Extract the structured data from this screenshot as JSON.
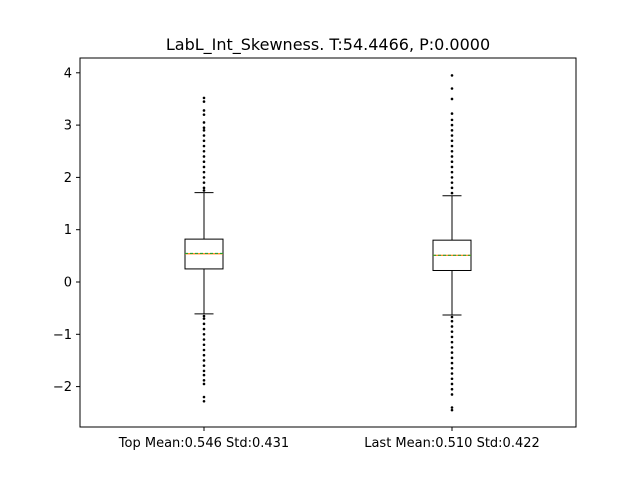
{
  "chart_data": {
    "type": "box",
    "title": "LabL_Int_Skewness. T:54.4466, P:0.0000",
    "xlabel": "",
    "ylabel": "",
    "ylim": [
      -2.8,
      4.25
    ],
    "yticks": [
      -2,
      -1,
      0,
      1,
      2,
      3,
      4
    ],
    "ytick_labels": [
      "−2",
      "−1",
      "0",
      "1",
      "2",
      "3",
      "4"
    ],
    "grid": false,
    "colors": {
      "box": "#000000",
      "median": "#ff7f0e",
      "mean": "#2ca02c",
      "flier": "#000000"
    },
    "boxes": [
      {
        "label": "Top Mean:0.546 Std:0.431",
        "q1": 0.25,
        "median": 0.54,
        "q3": 0.82,
        "mean": 0.546,
        "whisker_low": -0.61,
        "whisker_high": 1.71,
        "flier_high": [
          1.75,
          1.8,
          1.9,
          2.0,
          2.1,
          2.2,
          2.3,
          2.4,
          2.5,
          2.6,
          2.7,
          2.8,
          2.9,
          2.95,
          3.05,
          3.2,
          3.28,
          3.45,
          3.52
        ],
        "flier_low": [
          -0.65,
          -0.7,
          -0.8,
          -0.9,
          -1.0,
          -1.1,
          -1.2,
          -1.3,
          -1.4,
          -1.5,
          -1.6,
          -1.7,
          -1.78,
          -1.88,
          -1.95,
          -2.2,
          -2.28
        ]
      },
      {
        "label": "Last Mean:0.510 Std:0.422",
        "q1": 0.22,
        "median": 0.51,
        "q3": 0.8,
        "mean": 0.51,
        "whisker_low": -0.63,
        "whisker_high": 1.65,
        "flier_high": [
          1.7,
          1.8,
          1.9,
          2.0,
          2.1,
          2.2,
          2.3,
          2.4,
          2.5,
          2.6,
          2.7,
          2.8,
          2.9,
          3.0,
          3.1,
          3.22,
          3.5,
          3.7,
          3.95
        ],
        "flier_low": [
          -0.67,
          -0.75,
          -0.85,
          -0.95,
          -1.05,
          -1.15,
          -1.25,
          -1.35,
          -1.45,
          -1.55,
          -1.65,
          -1.75,
          -1.85,
          -1.95,
          -2.05,
          -2.15,
          -2.4,
          -2.45
        ]
      }
    ]
  }
}
